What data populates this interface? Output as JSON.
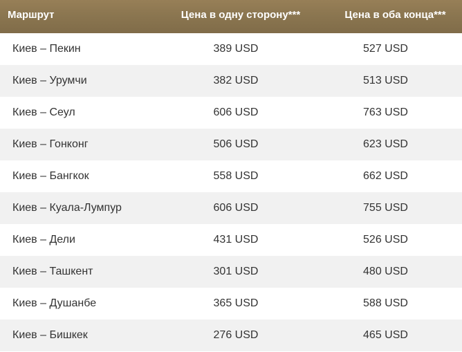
{
  "header": {
    "route": "Маршрут",
    "one_way": "Цена в одну сторону***",
    "round_trip": "Цена в оба конца***"
  },
  "rows": [
    {
      "route": "Киев – Пекин",
      "one_way": "389 USD",
      "round_trip": "527 USD"
    },
    {
      "route": "Киев – Урумчи",
      "one_way": "382 USD",
      "round_trip": "513 USD"
    },
    {
      "route": "Киев – Сеул",
      "one_way": "606 USD",
      "round_trip": "763 USD"
    },
    {
      "route": "Киев – Гонконг",
      "one_way": "506 USD",
      "round_trip": "623 USD"
    },
    {
      "route": "Киев – Бангкок",
      "one_way": "558 USD",
      "round_trip": "662 USD"
    },
    {
      "route": "Киев – Куала-Лумпур",
      "one_way": "606 USD",
      "round_trip": "755 USD"
    },
    {
      "route": "Киев – Дели",
      "one_way": "431 USD",
      "round_trip": "526 USD"
    },
    {
      "route": "Киев – Ташкент",
      "one_way": "301 USD",
      "round_trip": "480 USD"
    },
    {
      "route": "Киев – Душанбе",
      "one_way": "365 USD",
      "round_trip": "588 USD"
    },
    {
      "route": "Киев – Бишкек",
      "one_way": "276 USD",
      "round_trip": "465 USD"
    }
  ],
  "colors": {
    "header_bg": "#8b7650",
    "header_text": "#ffffff",
    "row_alt_bg": "#f1f1f1",
    "body_text": "#333333"
  }
}
